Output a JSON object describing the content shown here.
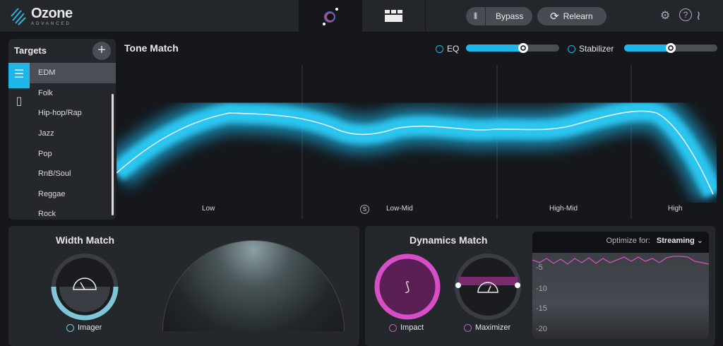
{
  "app": {
    "name": "Ozone",
    "edition": "ADVANCED"
  },
  "header": {
    "tabs": [
      {
        "icon": "master-assistant-icon"
      },
      {
        "icon": "modules-icon"
      }
    ],
    "bypass_label": "Bypass",
    "relearn_label": "Relearn",
    "icons": [
      "settings-icon",
      "help-icon",
      "izotope-logo-icon"
    ]
  },
  "targets": {
    "title": "Targets",
    "items": [
      "EDM",
      "Folk",
      "Hip-hop/Rap",
      "Jazz",
      "Pop",
      "RnB/Soul",
      "Reggae",
      "Rock"
    ],
    "selected": "EDM"
  },
  "tone_match": {
    "title": "Tone Match",
    "eq_label": "EQ",
    "eq_value": 0.6,
    "stabilizer_label": "Stabilizer",
    "stabilizer_value": 0.5,
    "bands": [
      "Low",
      "Low-Mid",
      "High-Mid",
      "High"
    ],
    "solo_label": "S",
    "accent": "#1eb6e6"
  },
  "width_match": {
    "title": "Width Match",
    "imager_label": "Imager",
    "accent": "#7fc6d6"
  },
  "dynamics_match": {
    "title": "Dynamics Match",
    "impact_label": "Impact",
    "maximizer_label": "Maximizer",
    "optimize_label": "Optimize for:",
    "optimize_value": "Streaming",
    "y_ticks": [
      "-5",
      "-10",
      "-15",
      "-20"
    ],
    "accent": "#d64fc6"
  }
}
